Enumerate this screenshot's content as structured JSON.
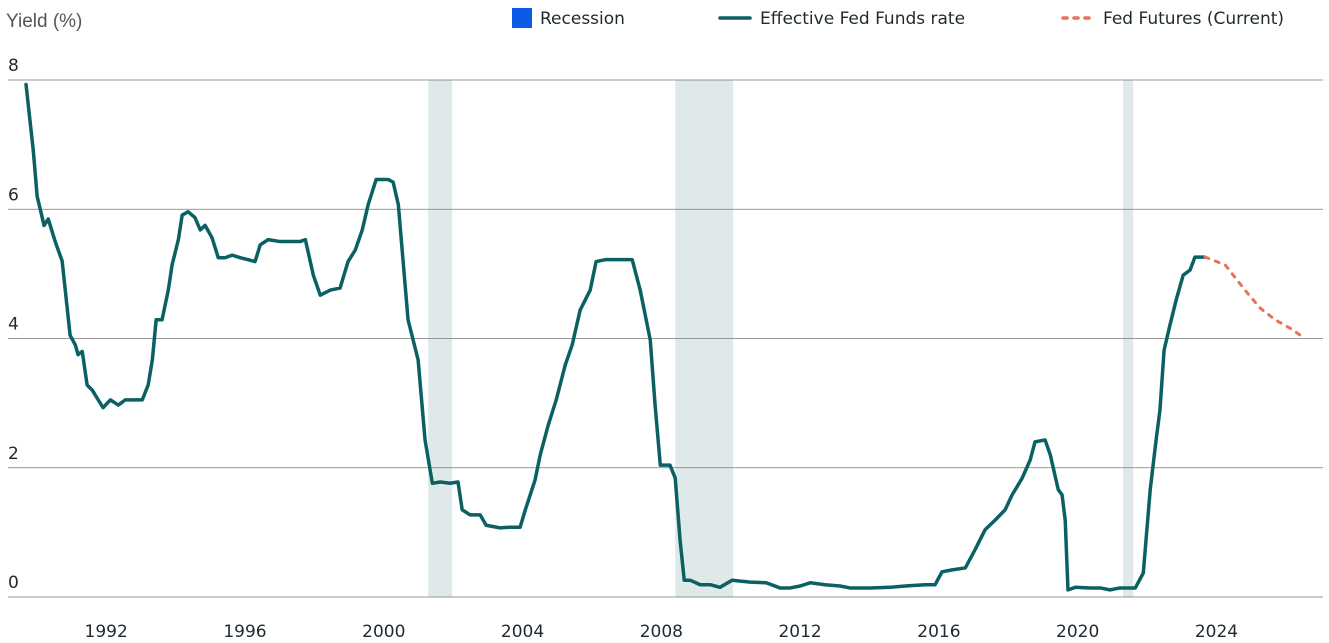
{
  "chart_data": {
    "type": "line",
    "y_axis_label": "Yield (%)",
    "xlim": [
      1989.17,
      2027.07
    ],
    "xticks": [
      1992,
      1996,
      2000,
      2004,
      2008,
      2012,
      2016,
      2020,
      2024
    ],
    "ylim": [
      0,
      8
    ],
    "yticks": [
      0,
      2,
      4,
      6,
      8
    ],
    "grid": true,
    "legend": "top",
    "recession": {
      "name": "Recession",
      "color": "#0a5ce6",
      "band_color": "#dfe9ea",
      "periods": [
        {
          "start": 2001.28,
          "end": 2001.97
        },
        {
          "start": 2008.4,
          "end": 2010.07
        },
        {
          "start": 2021.31,
          "end": 2021.6
        }
      ]
    },
    "series": [
      {
        "name": "Effective Fed Funds rate",
        "color": "#0b6062",
        "dashed": false,
        "x": [
          1989.69,
          1989.9,
          1990.01,
          1990.21,
          1990.33,
          1990.53,
          1990.73,
          1990.96,
          1991.11,
          1991.19,
          1991.31,
          1991.45,
          1991.6,
          1991.77,
          1991.91,
          1992.12,
          1992.35,
          1992.55,
          1992.84,
          1993.04,
          1993.21,
          1993.33,
          1993.44,
          1993.61,
          1993.79,
          1993.9,
          1994.08,
          1994.19,
          1994.36,
          1994.56,
          1994.71,
          1994.85,
          1995.05,
          1995.23,
          1995.43,
          1995.63,
          1995.86,
          1996.09,
          1996.29,
          1996.44,
          1996.67,
          1997.01,
          1997.36,
          1997.59,
          1997.74,
          1997.97,
          1998.17,
          1998.46,
          1998.74,
          1998.97,
          1999.18,
          1999.38,
          1999.55,
          1999.78,
          2000.13,
          2000.27,
          2000.42,
          2000.53,
          2000.7,
          2000.99,
          2001.19,
          2001.4,
          2001.63,
          2001.91,
          2002.14,
          2002.26,
          2002.49,
          2002.78,
          2002.95,
          2003.35,
          2003.64,
          2003.93,
          2004.08,
          2004.36,
          2004.51,
          2004.74,
          2004.97,
          2005.23,
          2005.43,
          2005.66,
          2005.95,
          2006.12,
          2006.38,
          2006.81,
          2007.16,
          2007.39,
          2007.68,
          2007.82,
          2007.97,
          2008.25,
          2008.4,
          2008.54,
          2008.66,
          2008.83,
          2009.12,
          2009.41,
          2009.69,
          2010.04,
          2010.56,
          2011.02,
          2011.42,
          2011.71,
          2012.0,
          2012.29,
          2012.72,
          2013.15,
          2013.44,
          2014.02,
          2014.59,
          2015.03,
          2015.6,
          2015.89,
          2016.09,
          2016.38,
          2016.76,
          2017.04,
          2017.33,
          2017.62,
          2017.91,
          2018.11,
          2018.4,
          2018.63,
          2018.77,
          2019.06,
          2019.21,
          2019.44,
          2019.55,
          2019.64,
          2019.72,
          2019.93,
          2020.36,
          2020.65,
          2020.93,
          2021.22,
          2021.66,
          2021.89,
          2022.09,
          2022.26,
          2022.37,
          2022.49,
          2022.66,
          2022.84,
          2023.04,
          2023.24,
          2023.38,
          2023.67
        ],
        "values": [
          7.93,
          6.9,
          6.2,
          5.75,
          5.85,
          5.5,
          5.2,
          4.05,
          3.9,
          3.75,
          3.8,
          3.28,
          3.2,
          3.05,
          2.93,
          3.05,
          2.97,
          3.05,
          3.05,
          3.05,
          3.28,
          3.67,
          4.29,
          4.29,
          4.75,
          5.14,
          5.53,
          5.91,
          5.96,
          5.87,
          5.68,
          5.75,
          5.56,
          5.25,
          5.25,
          5.29,
          5.25,
          5.22,
          5.19,
          5.45,
          5.53,
          5.5,
          5.5,
          5.5,
          5.53,
          4.98,
          4.67,
          4.75,
          4.78,
          5.19,
          5.37,
          5.68,
          6.07,
          6.46,
          6.46,
          6.42,
          6.07,
          5.37,
          4.29,
          3.67,
          2.43,
          1.76,
          1.78,
          1.76,
          1.78,
          1.35,
          1.27,
          1.27,
          1.11,
          1.07,
          1.08,
          1.08,
          1.35,
          1.81,
          2.2,
          2.66,
          3.05,
          3.59,
          3.9,
          4.44,
          4.75,
          5.19,
          5.22,
          5.22,
          5.22,
          4.75,
          3.98,
          2.97,
          2.04,
          2.04,
          1.84,
          0.88,
          0.26,
          0.26,
          0.19,
          0.19,
          0.15,
          0.26,
          0.23,
          0.22,
          0.14,
          0.14,
          0.17,
          0.22,
          0.19,
          0.17,
          0.14,
          0.14,
          0.15,
          0.17,
          0.19,
          0.19,
          0.39,
          0.42,
          0.45,
          0.73,
          1.04,
          1.19,
          1.35,
          1.58,
          1.84,
          2.12,
          2.4,
          2.43,
          2.2,
          1.66,
          1.58,
          1.19,
          0.11,
          0.15,
          0.14,
          0.14,
          0.11,
          0.14,
          0.14,
          0.37,
          1.66,
          2.43,
          2.89,
          3.82,
          4.21,
          4.6,
          4.98,
          5.06,
          5.26,
          5.26
        ]
      },
      {
        "name": "Fed Futures (Current)",
        "color": "#e8735a",
        "dashed": true,
        "x": [
          2023.67,
          2024.25,
          2024.82,
          2025.26,
          2025.69,
          2026.12,
          2026.5
        ],
        "values": [
          5.26,
          5.14,
          4.75,
          4.47,
          4.29,
          4.16,
          4.02
        ]
      }
    ]
  }
}
